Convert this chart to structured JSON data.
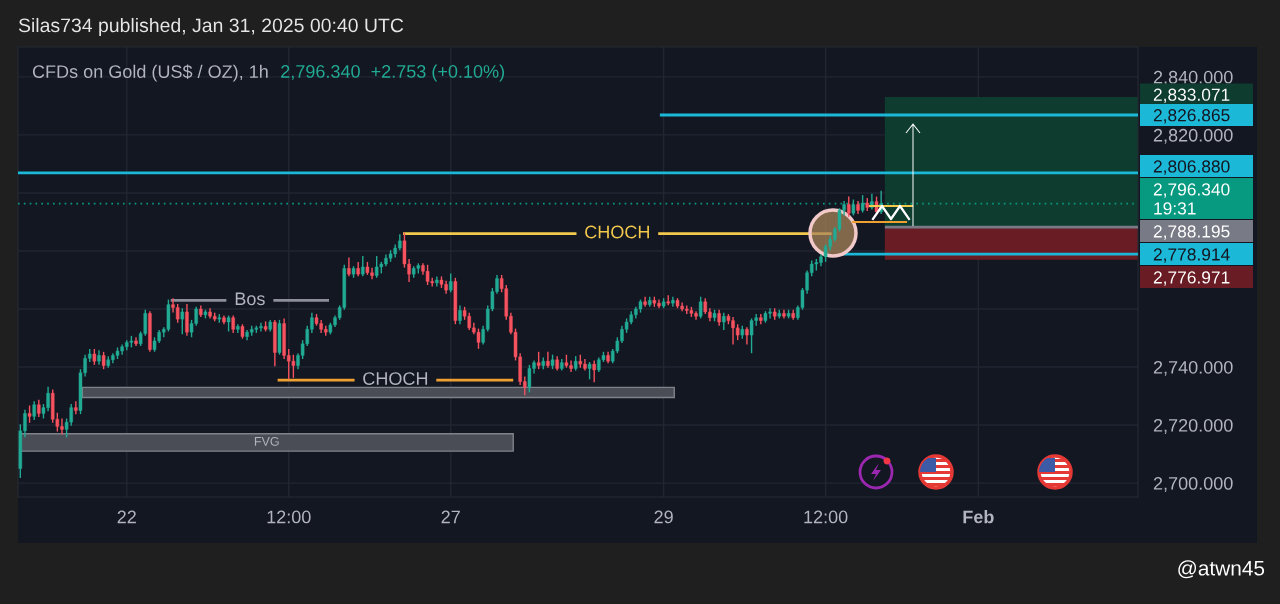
{
  "chart_data": {
    "type": "candlestick",
    "title": "CFDs on Gold (US$ / OZ), 1h",
    "subtitle": "2,796.340  +2.753 (+0.10%)",
    "annotations": [
      "Silas734 published, Jan 31, 2025 00:40 UTC",
      "@atwn45"
    ],
    "categories": [
      null,
      null,
      null,
      null,
      null,
      null,
      null,
      null,
      null,
      null,
      null,
      null,
      null,
      null,
      null,
      null,
      null,
      null,
      null,
      null,
      null,
      null,
      null,
      "22",
      null,
      null,
      null,
      null,
      null,
      null,
      null,
      null,
      null,
      null,
      null,
      null,
      null,
      null,
      null,
      null,
      null,
      null,
      null,
      null,
      null,
      null,
      null,
      null,
      null,
      null,
      null,
      null,
      null,
      null,
      null,
      null,
      null,
      null,
      "12:00",
      null,
      null,
      null,
      null,
      null,
      null,
      null,
      null,
      null,
      null,
      null,
      null,
      null,
      null,
      null,
      null,
      null,
      null,
      null,
      null,
      null,
      null,
      null,
      null,
      null,
      null,
      null,
      null,
      null,
      null,
      null,
      null,
      null,
      null,
      "27",
      null,
      null,
      null,
      null,
      null,
      null,
      null,
      null,
      null,
      null,
      null,
      null,
      null,
      null,
      null,
      null,
      null,
      null,
      null,
      null,
      null,
      null,
      null,
      null,
      null,
      null,
      null,
      null,
      null,
      null,
      null,
      null,
      null,
      null,
      null,
      null,
      null,
      null,
      null,
      null,
      null,
      null,
      null,
      null,
      null,
      "29",
      null,
      null,
      null,
      null,
      null,
      null,
      null,
      null,
      null,
      null,
      null,
      null,
      null,
      null,
      null,
      null,
      null,
      null,
      null,
      null,
      null,
      null,
      null,
      null,
      null,
      null,
      null,
      null,
      null,
      null,
      null,
      null,
      null,
      null,
      "12:00",
      null,
      null,
      null,
      null,
      null,
      null,
      null,
      null,
      null,
      null,
      null,
      null,
      null,
      null,
      null,
      null,
      null,
      null,
      null,
      null,
      null,
      null,
      null,
      null,
      null,
      null,
      null,
      null,
      null,
      null,
      null,
      null,
      "Feb",
      null,
      null,
      null,
      null,
      null,
      null,
      null,
      null,
      null,
      null,
      null,
      null,
      null,
      null,
      null,
      null,
      null,
      null,
      null,
      null,
      null,
      null,
      null,
      null,
      null,
      null,
      null,
      null,
      null,
      null,
      null,
      null,
      null,
      null
    ],
    "ohlc": [
      [
        2705,
        2720,
        2702,
        2718
      ],
      [
        2718,
        2725,
        2716,
        2724
      ],
      [
        2724,
        2726.5,
        2721,
        2723
      ],
      [
        2723,
        2728,
        2722,
        2727
      ],
      [
        2727,
        2728.5,
        2723,
        2724
      ],
      [
        2724,
        2727,
        2722.5,
        2726
      ],
      [
        2726,
        2733,
        2725,
        2731
      ],
      [
        2731,
        2732,
        2721,
        2722
      ],
      [
        2722,
        2724,
        2718,
        2719.5
      ],
      [
        2719.5,
        2722,
        2717,
        2718.5
      ],
      [
        2718.5,
        2722,
        2716,
        2721
      ],
      [
        2721,
        2727,
        2720,
        2726
      ],
      [
        2726,
        2728,
        2724,
        2725
      ],
      [
        2725,
        2739,
        2724,
        2738
      ],
      [
        2738,
        2744,
        2737,
        2743
      ],
      [
        2743,
        2746,
        2742,
        2744.5
      ],
      [
        2744.5,
        2746,
        2741,
        2742
      ],
      [
        2742,
        2745.5,
        2741,
        2744
      ],
      [
        2744,
        2745,
        2739.5,
        2740.5
      ],
      [
        2740.5,
        2743.5,
        2740,
        2742.5
      ],
      [
        2742.5,
        2744.5,
        2741.5,
        2744
      ],
      [
        2744,
        2746.5,
        2743,
        2745.5
      ],
      [
        2745.5,
        2747.5,
        2744.5,
        2747
      ],
      [
        2747,
        2749,
        2746,
        2748.5
      ],
      [
        2748.5,
        2750.5,
        2747,
        2749
      ],
      [
        2749,
        2750,
        2747.5,
        2748
      ],
      [
        2748,
        2752,
        2747.5,
        2751.5
      ],
      [
        2751.5,
        2759.5,
        2751,
        2758.5
      ],
      [
        2758.5,
        2759,
        2745.5,
        2746
      ],
      [
        2746,
        2750,
        2745.5,
        2749
      ],
      [
        2749,
        2752.5,
        2748.5,
        2752
      ],
      [
        2752,
        2753.5,
        2750.5,
        2753
      ],
      [
        2753,
        2763,
        2752.5,
        2761.5
      ],
      [
        2761.5,
        2763.5,
        2759,
        2760.5
      ],
      [
        2760.5,
        2761.5,
        2755.5,
        2756.5
      ],
      [
        2756.5,
        2760,
        2751.5,
        2759
      ],
      [
        2759,
        2761.5,
        2751,
        2752
      ],
      [
        2752,
        2756,
        2750.5,
        2755
      ],
      [
        2755,
        2760.5,
        2754.5,
        2760
      ],
      [
        2760,
        2761,
        2757.5,
        2758
      ],
      [
        2758,
        2759.5,
        2757,
        2759
      ],
      [
        2759,
        2760,
        2757,
        2757.5
      ],
      [
        2757.5,
        2758.5,
        2756,
        2756.5
      ],
      [
        2756.5,
        2758,
        2755.5,
        2757
      ],
      [
        2757,
        2757.5,
        2755,
        2755.5
      ],
      [
        2755.5,
        2757.5,
        2752.5,
        2757
      ],
      [
        2757,
        2757.5,
        2752,
        2753
      ],
      [
        2753,
        2754.5,
        2752,
        2754
      ],
      [
        2754,
        2754.5,
        2750,
        2750.5
      ],
      [
        2750.5,
        2752.5,
        2749.5,
        2752
      ],
      [
        2752,
        2754,
        2751,
        2753
      ],
      [
        2753,
        2754,
        2752,
        2753.5
      ],
      [
        2753.5,
        2755,
        2752.5,
        2754
      ],
      [
        2754,
        2755.5,
        2752.5,
        2753
      ],
      [
        2753,
        2756,
        2752.5,
        2755.5
      ],
      [
        2755.5,
        2756,
        2740.5,
        2745
      ],
      [
        2745,
        2756,
        2744.5,
        2755
      ],
      [
        2755,
        2756.5,
        2743,
        2744
      ],
      [
        2744,
        2746,
        2736,
        2742
      ],
      [
        2742,
        2744,
        2736.5,
        2740.5
      ],
      [
        2740.5,
        2744.5,
        2739.5,
        2744
      ],
      [
        2744,
        2749,
        2743,
        2748
      ],
      [
        2748,
        2754,
        2747.5,
        2753
      ],
      [
        2753,
        2758.5,
        2752,
        2757
      ],
      [
        2757,
        2758,
        2754.5,
        2755
      ],
      [
        2755,
        2756,
        2752,
        2753
      ],
      [
        2753,
        2754,
        2751,
        2752
      ],
      [
        2752,
        2755,
        2751.5,
        2754.5
      ],
      [
        2754.5,
        2757.5,
        2754,
        2757
      ],
      [
        2757,
        2761,
        2756.5,
        2760.5
      ],
      [
        2760.5,
        2775,
        2760,
        2774
      ],
      [
        2774,
        2777.5,
        2771.5,
        2772
      ],
      [
        2772,
        2774.5,
        2771,
        2774
      ],
      [
        2774,
        2776,
        2771.5,
        2772
      ],
      [
        2772,
        2778,
        2771.5,
        2774.5
      ],
      [
        2774.5,
        2776,
        2772,
        2772.5
      ],
      [
        2772.5,
        2774,
        2770.5,
        2771.5
      ],
      [
        2771.5,
        2778,
        2771,
        2774.5
      ],
      [
        2774.5,
        2776,
        2772.5,
        2775.5
      ],
      [
        2775.5,
        2778.5,
        2775,
        2777.5
      ],
      [
        2777.5,
        2780,
        2776.5,
        2779
      ],
      [
        2779,
        2782,
        2778,
        2781
      ],
      [
        2781,
        2785.5,
        2780.5,
        2783.5
      ],
      [
        2783.5,
        2786,
        2774.5,
        2775.5
      ],
      [
        2775.5,
        2777,
        2769.5,
        2772
      ],
      [
        2772,
        2774.5,
        2771,
        2774
      ],
      [
        2774,
        2775.5,
        2772.5,
        2775
      ],
      [
        2775,
        2775.5,
        2772,
        2773
      ],
      [
        2773,
        2775,
        2768.5,
        2769.5
      ],
      [
        2769.5,
        2770.5,
        2768,
        2769
      ],
      [
        2769,
        2771,
        2768,
        2770
      ],
      [
        2770,
        2771,
        2767.5,
        2768.5
      ],
      [
        2768.5,
        2769.5,
        2765.5,
        2766.5
      ],
      [
        2766.5,
        2772,
        2766,
        2769.5
      ],
      [
        2769.5,
        2770.5,
        2755,
        2756
      ],
      [
        2756,
        2761,
        2755,
        2759.5
      ],
      [
        2759.5,
        2760.5,
        2756.5,
        2757.5
      ],
      [
        2757.5,
        2758.5,
        2753,
        2753.5
      ],
      [
        2753.5,
        2755,
        2751.5,
        2752
      ],
      [
        2752,
        2753,
        2746.5,
        2748.5
      ],
      [
        2748.5,
        2754,
        2748,
        2753
      ],
      [
        2753,
        2761,
        2752.5,
        2760
      ],
      [
        2760,
        2767,
        2759.5,
        2766
      ],
      [
        2766,
        2771.5,
        2765.5,
        2770.5
      ],
      [
        2770.5,
        2771.5,
        2766,
        2767
      ],
      [
        2767,
        2768,
        2756.5,
        2757.5
      ],
      [
        2757.5,
        2758.5,
        2751.5,
        2752
      ],
      [
        2752,
        2753,
        2742.5,
        2743.5
      ],
      [
        2743.5,
        2744.5,
        2734,
        2735
      ],
      [
        2735,
        2736.5,
        2730.5,
        2733
      ],
      [
        2733,
        2740.5,
        2731.5,
        2739.5
      ],
      [
        2739.5,
        2742,
        2738,
        2741.5
      ],
      [
        2741.5,
        2745,
        2739.5,
        2740.5
      ],
      [
        2740.5,
        2743,
        2739.5,
        2742
      ],
      [
        2742,
        2745,
        2740,
        2740.5
      ],
      [
        2740.5,
        2744,
        2739.5,
        2742.5
      ],
      [
        2742.5,
        2743.5,
        2739,
        2739.5
      ],
      [
        2739.5,
        2742.5,
        2739,
        2741.5
      ],
      [
        2741.5,
        2744,
        2740,
        2740.5
      ],
      [
        2740.5,
        2742,
        2738.5,
        2739.5
      ],
      [
        2739.5,
        2743.5,
        2739,
        2742
      ],
      [
        2742,
        2744,
        2740,
        2741
      ],
      [
        2741,
        2742.5,
        2739,
        2739.5
      ],
      [
        2739.5,
        2741.5,
        2736,
        2741
      ],
      [
        2741,
        2742,
        2735,
        2739
      ],
      [
        2739,
        2743,
        2738.5,
        2742.5
      ],
      [
        2742.5,
        2745,
        2742,
        2744
      ],
      [
        2744,
        2745,
        2741.5,
        2742
      ],
      [
        2742,
        2746,
        2741.5,
        2745.5
      ],
      [
        2745.5,
        2750,
        2745,
        2749
      ],
      [
        2749,
        2754,
        2748.5,
        2753
      ],
      [
        2753,
        2756.5,
        2752,
        2755.5
      ],
      [
        2755.5,
        2759,
        2755,
        2758
      ],
      [
        2758,
        2760.5,
        2757,
        2760
      ],
      [
        2760,
        2763,
        2759,
        2762.5
      ],
      [
        2762.5,
        2764,
        2761,
        2761.5
      ],
      [
        2761.5,
        2764,
        2761,
        2763
      ],
      [
        2763,
        2764,
        2761,
        2762
      ],
      [
        2762,
        2763,
        2760.5,
        2761
      ],
      [
        2761,
        2763.5,
        2760.5,
        2762.5
      ],
      [
        2762.5,
        2764.5,
        2761.5,
        2762
      ],
      [
        2762,
        2764,
        2761,
        2763
      ],
      [
        2763,
        2763.5,
        2760.5,
        2761
      ],
      [
        2761,
        2762,
        2759.5,
        2760
      ],
      [
        2760,
        2761,
        2758.5,
        2759.5
      ],
      [
        2759.5,
        2760.5,
        2757.5,
        2758.5
      ],
      [
        2758.5,
        2759,
        2756.5,
        2757.5
      ],
      [
        2757.5,
        2764,
        2757,
        2762.5
      ],
      [
        2762.5,
        2763.5,
        2758.5,
        2759
      ],
      [
        2759,
        2760,
        2756,
        2757
      ],
      [
        2757,
        2759.5,
        2756,
        2758.5
      ],
      [
        2758.5,
        2759.5,
        2754.5,
        2755.5
      ],
      [
        2755.5,
        2758.5,
        2753,
        2757.5
      ],
      [
        2757.5,
        2758,
        2755,
        2756
      ],
      [
        2756,
        2757,
        2748,
        2753.5
      ],
      [
        2753.5,
        2754.5,
        2749.5,
        2751
      ],
      [
        2751,
        2754,
        2750,
        2753
      ],
      [
        2753,
        2753.5,
        2748,
        2751
      ],
      [
        2751,
        2756.5,
        2745,
        2756
      ],
      [
        2756,
        2758,
        2754.5,
        2757
      ],
      [
        2757,
        2758,
        2755,
        2756
      ],
      [
        2756,
        2759,
        2755.5,
        2758.5
      ],
      [
        2758.5,
        2760,
        2757,
        2759
      ],
      [
        2759,
        2760,
        2756.5,
        2757.5
      ],
      [
        2757.5,
        2759.5,
        2757,
        2758.5
      ],
      [
        2758.5,
        2759.5,
        2757,
        2757.5
      ],
      [
        2757.5,
        2759.5,
        2757,
        2758.5
      ],
      [
        2758.5,
        2759.5,
        2756.5,
        2757
      ],
      [
        2757,
        2761,
        2756.5,
        2760.5
      ],
      [
        2760.5,
        2767,
        2760,
        2766.5
      ],
      [
        2766.5,
        2773,
        2765.5,
        2772.5
      ],
      [
        2772.5,
        2776.5,
        2771.5,
        2775.5
      ],
      [
        2775.5,
        2777,
        2773.5,
        2776
      ],
      [
        2776,
        2778.5,
        2775,
        2778
      ],
      [
        2778,
        2782,
        2776.5,
        2781.5
      ],
      [
        2781.5,
        2785,
        2780.5,
        2784
      ],
      [
        2784,
        2788,
        2783.5,
        2787.5
      ],
      [
        2787.5,
        2794.5,
        2787,
        2794
      ],
      [
        2794,
        2797,
        2792.5,
        2796
      ],
      [
        2796,
        2798.5,
        2792,
        2793
      ],
      [
        2793,
        2797.5,
        2792.5,
        2796
      ],
      [
        2796,
        2797,
        2793,
        2794
      ],
      [
        2794,
        2799,
        2793.5,
        2796.5
      ],
      [
        2796.5,
        2798,
        2794,
        2795
      ],
      [
        2795,
        2799.5,
        2794.5,
        2797
      ],
      [
        2797,
        2798.5,
        2793.5,
        2793.5
      ],
      [
        2793.5,
        2800.5,
        2793,
        2796.34
      ],
      null,
      null,
      null,
      null,
      null,
      null,
      null,
      null,
      null,
      null,
      null,
      null,
      null,
      null,
      null,
      null,
      null,
      null,
      null,
      null,
      null,
      null,
      null,
      null,
      null,
      null,
      null,
      null,
      null,
      null,
      null,
      null,
      null,
      null,
      null,
      null,
      null,
      null,
      null,
      null,
      null,
      null,
      null,
      null,
      null,
      null,
      null,
      null,
      null,
      null,
      null,
      null,
      null,
      null,
      null
    ],
    "ylim": [
      2695.2,
      2850.3
    ],
    "yticks": [
      {
        "value": 2700,
        "label": "2,700.000"
      },
      {
        "value": 2720,
        "label": "2,720.000"
      },
      {
        "value": 2740,
        "label": "2,740.000"
      },
      {
        "value": 2760,
        "label": null
      },
      {
        "value": 2780,
        "label": null
      },
      {
        "value": 2800,
        "label": null
      },
      {
        "value": 2820,
        "label": "2,820.000"
      },
      {
        "value": 2840,
        "label": "2,840.000"
      }
    ],
    "grid": true,
    "ref_lines": [
      {
        "axis": "y",
        "value": 2826.865,
        "label": "2,826.865",
        "color": "#1cb8d8"
      },
      {
        "axis": "y",
        "value": 2806.88,
        "label": "2,806.880",
        "color": "#1cb8d8"
      },
      {
        "axis": "y",
        "value": 2796.34,
        "label": "2,796.340\n19:31",
        "color": "#089981",
        "line_style": "dotted"
      },
      {
        "axis": "y",
        "value": 2788.195,
        "label": "2,788.195",
        "color": "#787b86"
      },
      {
        "axis": "y",
        "value": 2778.914,
        "label": "2,778.914",
        "color": "#1cb8d8"
      },
      {
        "axis": "y",
        "value": 2786,
        "label": "CHOCH",
        "color": "#f2c94c"
      },
      {
        "axis": "y",
        "value": 2763,
        "label": "Bos",
        "color": "#8d909a"
      },
      {
        "axis": "y",
        "value": 2735.5,
        "label": "CHOCH",
        "color": "#f0a030"
      }
    ],
    "bands": [
      {
        "axis": "y",
        "from": 2788.195,
        "to": 2833.071,
        "label": "2,833.071",
        "color": "#0e3c2f"
      },
      {
        "axis": "y",
        "from": 2788.195,
        "to": 2776.971,
        "label": "2,776.971",
        "color": "#6a1c25"
      },
      {
        "axis": "y",
        "from": 2729.5,
        "to": 2733,
        "color": "#4a4d56"
      },
      {
        "axis": "y",
        "from": 2711,
        "to": 2717,
        "label": "FVG",
        "color": "#4a4d56"
      }
    ]
  }
}
